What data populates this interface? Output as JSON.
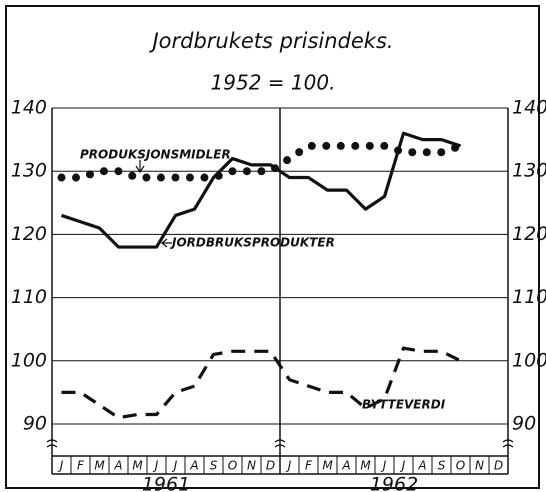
{
  "chart_data": {
    "type": "line",
    "title": "Jordbrukets prisindeks.",
    "subtitle": "1952 = 100.",
    "categories": [
      "J",
      "F",
      "M",
      "A",
      "M",
      "J",
      "J",
      "A",
      "S",
      "O",
      "N",
      "D",
      "J",
      "F",
      "M",
      "A",
      "M",
      "J",
      "J",
      "A",
      "S",
      "O",
      "N",
      "D"
    ],
    "year_labels": [
      "1961",
      "1962"
    ],
    "series": [
      {
        "name": "JORDBRUKSPRODUKTER",
        "color": "#111111",
        "style": "solid",
        "values": [
          123,
          122,
          121,
          118,
          118,
          118,
          123,
          124,
          129,
          132,
          131,
          131,
          129,
          129,
          127,
          127,
          124,
          126,
          136,
          135,
          135,
          134,
          null,
          null
        ]
      },
      {
        "name": "PRODUKSJONSMIDLER",
        "color": "#111111",
        "style": "dotted",
        "values": [
          129,
          129,
          130,
          130,
          129,
          129,
          129,
          129,
          129,
          130,
          130,
          130,
          132,
          134,
          134,
          134,
          134,
          134,
          133,
          133,
          133,
          134,
          null,
          null
        ]
      },
      {
        "name": "BYTTEVERDI",
        "color": "#111111",
        "style": "dashed",
        "values": [
          95,
          95,
          93,
          91,
          91.5,
          91.5,
          95,
          96,
          101,
          101.5,
          101.5,
          101.5,
          97,
          96,
          95,
          95,
          92.5,
          94,
          102,
          101.5,
          101.5,
          100,
          null,
          null
        ]
      }
    ],
    "ylim": [
      90,
      140
    ],
    "yticks": [
      90,
      100,
      110,
      120,
      130,
      140
    ],
    "grid": true
  }
}
